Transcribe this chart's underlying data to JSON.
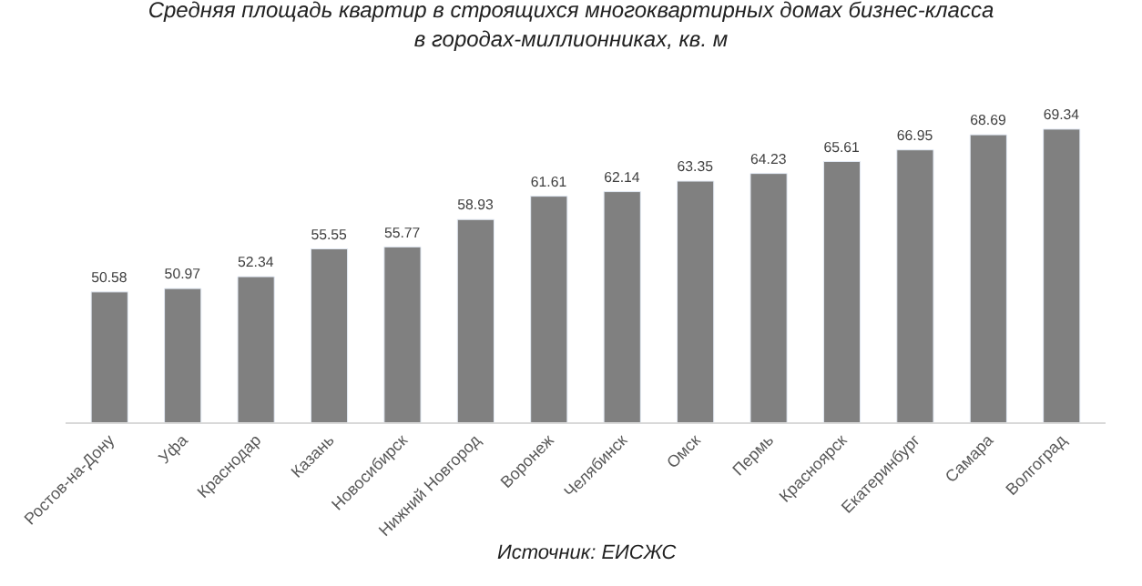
{
  "chart_data": {
    "type": "bar",
    "title": "Средняя площадь квартир в строящихся многоквартирных домах бизнес-класса\nв городах-миллионниках, кв. м",
    "categories": [
      "Ростов-на-Дону",
      "Уфа",
      "Краснодар",
      "Казань",
      "Новосибирск",
      "Нижний Новгород",
      "Воронеж",
      "Челябинск",
      "Омск",
      "Пермь",
      "Красноярск",
      "Екатеринбург",
      "Самара",
      "Волгоград"
    ],
    "values": [
      50.58,
      50.97,
      52.34,
      55.55,
      55.77,
      58.93,
      61.61,
      62.14,
      63.35,
      64.23,
      65.61,
      66.95,
      68.69,
      69.34
    ],
    "color": "#808080",
    "data_labels": true,
    "tick_labels": "x",
    "annotations": [
      "Источник: ЕИСЖС"
    ]
  }
}
